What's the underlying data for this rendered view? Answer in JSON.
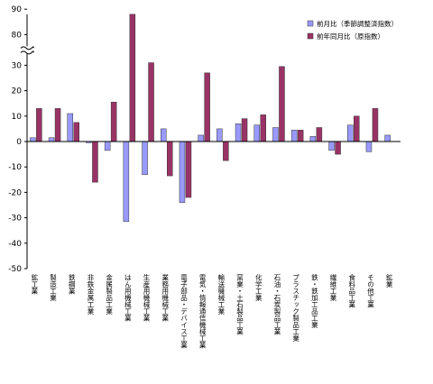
{
  "chart_data": {
    "type": "bar",
    "title": "",
    "xlabel": "",
    "ylabel": "",
    "ylim": [
      -50,
      90
    ],
    "axis_break": [
      40,
      80
    ],
    "y_ticks": [
      -50,
      -40,
      -30,
      -20,
      -10,
      0,
      10,
      20,
      30,
      80,
      90
    ],
    "legend_position": "top-right",
    "categories": [
      "鉱工業",
      "製造工業",
      "鉄鋼業",
      "非鉄金属工業",
      "金属製品工業",
      "はん用機械工業",
      "生産用機械工業",
      "業務用機械工業",
      "電子部品・デバイス工業",
      "電気・情報通信機械工業",
      "輸送機械工業",
      "窯業・土石製品工業",
      "化学工業",
      "石油・石炭製品工業",
      "プラスチック製品工業",
      "鉄・鉄加工品工業",
      "繊維工業",
      "食料品工業",
      "その他工業",
      "鉱業"
    ],
    "series": [
      {
        "name": "前月比（季節調整済指数）",
        "color": "#9999ff",
        "values": [
          1.5,
          1.5,
          11,
          -0.5,
          -3.5,
          -31.5,
          -13,
          5,
          -24,
          2.5,
          5,
          7,
          6.5,
          5.5,
          4.5,
          2,
          -3.5,
          6.5,
          -4,
          2.5
        ]
      },
      {
        "name": "前年同月比（原指数）",
        "color": "#993366",
        "values": [
          13,
          13,
          7.5,
          -16,
          15.5,
          88,
          31,
          -13.5,
          -22,
          27,
          -7.5,
          9,
          10.5,
          29.5,
          4.5,
          5.5,
          -5,
          10,
          13,
          null
        ]
      }
    ]
  }
}
